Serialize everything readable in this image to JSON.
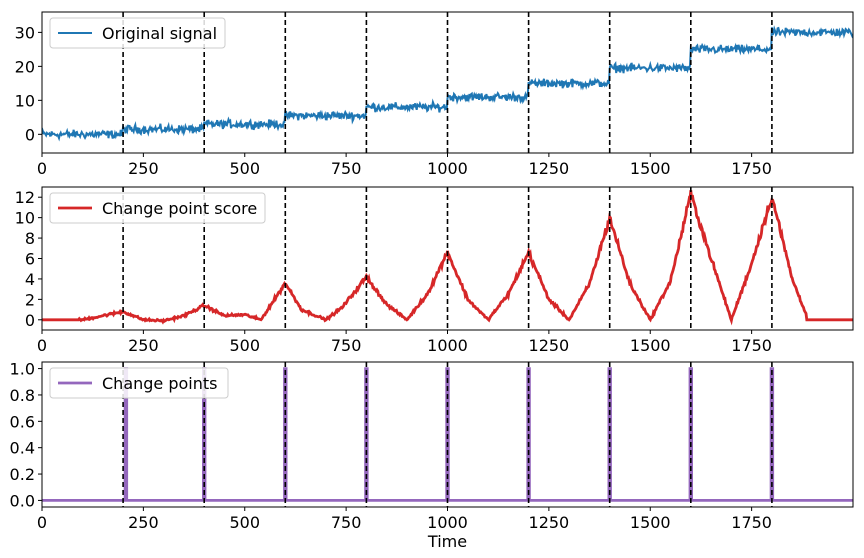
{
  "chart_data": [
    {
      "type": "line",
      "xlim": [
        0,
        2000
      ],
      "ylim": [
        -5.5,
        36
      ],
      "x_ticks": [
        0,
        250,
        500,
        750,
        1000,
        1250,
        1500,
        1750
      ],
      "x_tick_labels": [
        "0",
        "250",
        "500",
        "750",
        "1000",
        "1250",
        "1500",
        "1750"
      ],
      "y_ticks": [
        0,
        10,
        20,
        30
      ],
      "y_tick_labels": [
        "0",
        "10",
        "20",
        "30"
      ],
      "xlabel": "",
      "legend_position": "top-left",
      "grid": false,
      "vlines": [
        200,
        400,
        600,
        800,
        1000,
        1200,
        1400,
        1600,
        1800
      ],
      "series": [
        {
          "name": "Original signal",
          "color": "#1f77b4",
          "segment_means": [
            0,
            1.5,
            3,
            5.5,
            8,
            11,
            15,
            19.5,
            25,
            30
          ],
          "noise_amplitude": 1.8
        }
      ]
    },
    {
      "type": "line",
      "xlim": [
        0,
        2000
      ],
      "ylim": [
        -1,
        13
      ],
      "x_ticks": [
        0,
        250,
        500,
        750,
        1000,
        1250,
        1500,
        1750
      ],
      "x_tick_labels": [
        "0",
        "250",
        "500",
        "750",
        "1000",
        "1250",
        "1500",
        "1750"
      ],
      "y_ticks": [
        0,
        2,
        4,
        6,
        8,
        10,
        12
      ],
      "y_tick_labels": [
        "0",
        "2",
        "4",
        "6",
        "8",
        "10",
        "12"
      ],
      "xlabel": "",
      "legend_position": "top-left",
      "grid": false,
      "vlines": [
        200,
        400,
        600,
        800,
        1000,
        1200,
        1400,
        1600,
        1800
      ],
      "series": [
        {
          "name": "Change point score",
          "color": "#d62728",
          "x": [
            0,
            100,
            150,
            200,
            250,
            300,
            350,
            400,
            450,
            500,
            540,
            600,
            640,
            700,
            740,
            800,
            850,
            900,
            950,
            1000,
            1050,
            1100,
            1150,
            1200,
            1250,
            1300,
            1350,
            1400,
            1450,
            1500,
            1550,
            1600,
            1650,
            1700,
            1750,
            1800,
            1850,
            1890,
            2000
          ],
          "y": [
            0,
            0,
            0.4,
            0.8,
            0,
            -0.1,
            0.4,
            1.4,
            0.4,
            0.5,
            0,
            3.6,
            1.0,
            0,
            1.2,
            4.2,
            1.5,
            0,
            2.5,
            6.6,
            2.0,
            0,
            2.5,
            6.6,
            2.0,
            0,
            3.5,
            10.0,
            3.5,
            0,
            3.8,
            12.3,
            6.0,
            0,
            5.5,
            12.1,
            4.0,
            0,
            0
          ]
        }
      ]
    },
    {
      "type": "line",
      "xlim": [
        0,
        2000
      ],
      "ylim": [
        -0.05,
        1.05
      ],
      "x_ticks": [
        0,
        250,
        500,
        750,
        1000,
        1250,
        1500,
        1750
      ],
      "x_tick_labels": [
        "0",
        "250",
        "500",
        "750",
        "1000",
        "1250",
        "1500",
        "1750"
      ],
      "y_ticks": [
        0.0,
        0.2,
        0.4,
        0.6,
        0.8,
        1.0
      ],
      "y_tick_labels": [
        "0.0",
        "0.2",
        "0.4",
        "0.6",
        "0.8",
        "1.0"
      ],
      "xlabel": "Time",
      "legend_position": "top-left",
      "grid": false,
      "vlines": [
        200,
        400,
        600,
        800,
        1000,
        1200,
        1400,
        1600,
        1800
      ],
      "series": [
        {
          "name": "Change points",
          "color": "#9467bd",
          "spikes_x": [
            207,
            400,
            600,
            800,
            1000,
            1200,
            1400,
            1600,
            1800
          ],
          "spike_value": 1.0,
          "baseline": 0.0
        }
      ]
    }
  ]
}
